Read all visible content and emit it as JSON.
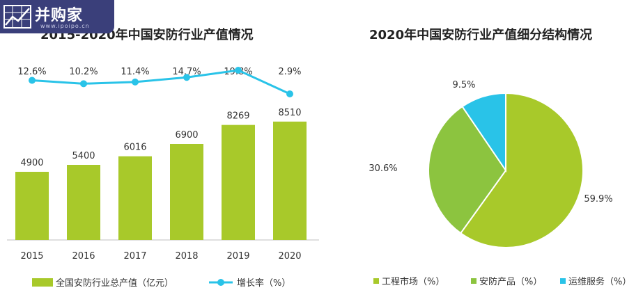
{
  "logo": {
    "text": "并购家",
    "sub": "www.ipoipo.cn"
  },
  "chart_data": [
    {
      "type": "bar",
      "title": "2015-2020年中国安防行业产值情况",
      "categories": [
        "2015",
        "2016",
        "2017",
        "2018",
        "2019",
        "2020"
      ],
      "series": [
        {
          "name": "全国安防行业总产值（亿元）",
          "type": "bar",
          "values": [
            4900,
            5400,
            6016,
            6900,
            8269,
            8510
          ],
          "color": "#a8c92a"
        },
        {
          "name": "增长率（%）",
          "type": "line",
          "values": [
            12.6,
            10.2,
            11.4,
            14.7,
            19.8,
            2.9
          ],
          "labels": [
            "12.6%",
            "10.2%",
            "11.4%",
            "14.7%",
            "19.8%",
            "2.9%"
          ],
          "color": "#29c3e8"
        }
      ],
      "legend": "bottom"
    },
    {
      "type": "pie",
      "title": "2020年中国安防行业产值细分结构情况",
      "slices": [
        {
          "name": "工程市场（%）",
          "value": 59.9,
          "label": "59.9%",
          "color": "#a8c92a"
        },
        {
          "name": "安防产品（%）",
          "value": 30.6,
          "label": "30.6%",
          "color": "#8cc43f"
        },
        {
          "name": "运维服务（%）",
          "value": 9.5,
          "label": "9.5%",
          "color": "#29c3e8"
        }
      ],
      "legend": "bottom"
    }
  ]
}
